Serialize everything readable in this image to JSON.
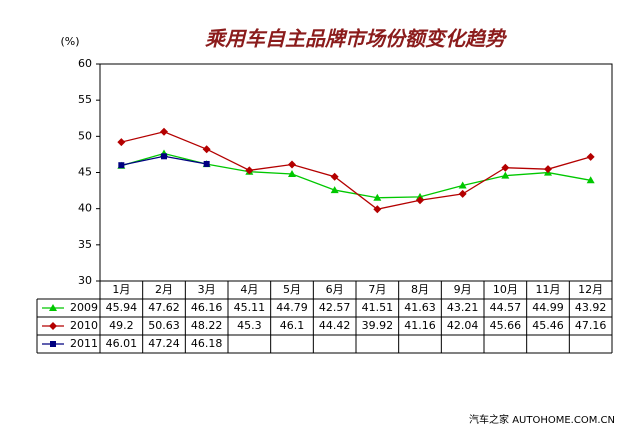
{
  "chart_data": {
    "type": "line",
    "title": "乘用车自主品牌市场份额变化趋势",
    "y_label": "(%)",
    "categories": [
      "1月",
      "2月",
      "3月",
      "4月",
      "5月",
      "6月",
      "7月",
      "8月",
      "9月",
      "10月",
      "11月",
      "12月"
    ],
    "series": [
      {
        "name": "2009",
        "color": "#00c800",
        "marker": "triangle",
        "values": [
          45.94,
          47.62,
          46.16,
          45.11,
          44.79,
          42.57,
          41.51,
          41.63,
          43.21,
          44.57,
          44.99,
          43.92
        ]
      },
      {
        "name": "2010",
        "color": "#b40000",
        "marker": "diamond",
        "values": [
          49.2,
          50.63,
          48.22,
          45.3,
          46.1,
          44.42,
          39.92,
          41.16,
          42.04,
          45.66,
          45.46,
          47.16
        ]
      },
      {
        "name": "2011",
        "color": "#000080",
        "marker": "square",
        "values": [
          46.01,
          47.24,
          46.18,
          null,
          null,
          null,
          null,
          null,
          null,
          null,
          null,
          null
        ]
      }
    ],
    "ylim": [
      30,
      60
    ],
    "yticks": [
      30,
      35,
      40,
      45,
      50,
      55,
      60
    ],
    "grid": false,
    "watermark": "汽车之家 AUTOHOME.COM.CN"
  }
}
